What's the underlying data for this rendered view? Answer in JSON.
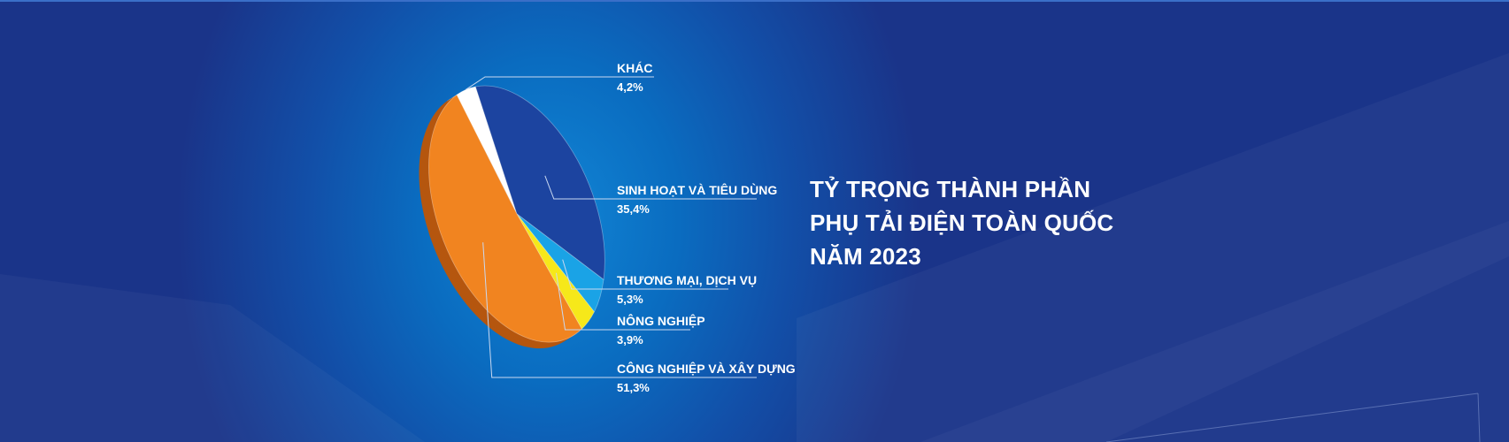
{
  "chart_data": {
    "type": "pie",
    "title_lines": [
      "TỶ TRỌNG THÀNH PHẦN",
      "PHỤ TẢI ĐIỆN TOÀN QUỐC",
      "NĂM 2023"
    ],
    "slices": [
      {
        "label": "KHÁC",
        "value_text": "4,2%",
        "value": 4.2,
        "color": "#ffffff",
        "side_color": "#c9ccd6"
      },
      {
        "label": "SINH HOẠT VÀ TIÊU DÙNG",
        "value_text": "35,4%",
        "value": 35.4,
        "color": "#1c44a0",
        "side_color": "#0f2a6a"
      },
      {
        "label": "THƯƠNG MẠI, DỊCH VỤ",
        "value_text": "5,3%",
        "value": 5.3,
        "color": "#1aa3e6",
        "side_color": "#0e6aa6"
      },
      {
        "label": "NÔNG NGHIỆP",
        "value_text": "3,9%",
        "value": 3.9,
        "color": "#f6e81a",
        "side_color": "#b09a06"
      },
      {
        "label": "CÔNG NGHIỆP VÀ XÂY DỰNG",
        "value_text": "51,3%",
        "value": 51.3,
        "color": "#f18420",
        "side_color": "#b5560f"
      }
    ],
    "label_color": "#ffffff",
    "leader_color": "#c9d8f0"
  }
}
